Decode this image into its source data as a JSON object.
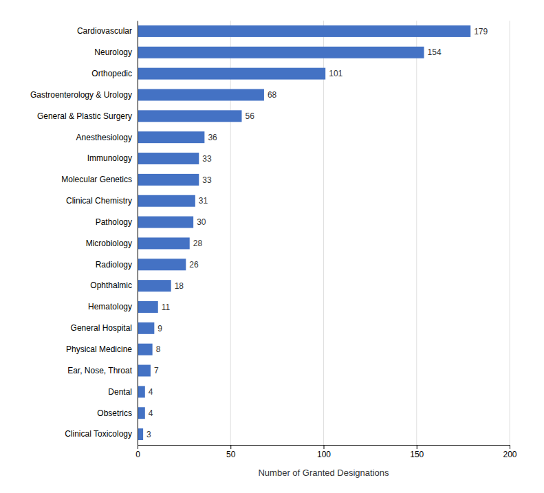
{
  "chart_data": {
    "type": "bar",
    "orientation": "horizontal",
    "x_label": "Number of Granted Designations",
    "categories": [
      "Clinical Toxicology",
      "Obsetrics",
      "Dental",
      "Ear, Nose, Throat",
      "Physical Medicine",
      "General Hospital",
      "Hematology",
      "Ophthalmic",
      "Radiology",
      "Microbiology",
      "Pathology",
      "Clinical Chemistry",
      "Molecular Genetics",
      "Immunology",
      "Anesthesiology",
      "General & Plastic Surgery",
      "Gastroenterology & Urology",
      "Orthopedic",
      "Neurology",
      "Cardiovascular"
    ],
    "values": [
      3,
      4,
      4,
      7,
      8,
      9,
      11,
      18,
      26,
      28,
      30,
      31,
      33,
      33,
      36,
      56,
      68,
      101,
      154,
      179
    ],
    "color": "#4472C4",
    "xlim": [
      0,
      200
    ],
    "xticks": [
      0,
      50,
      100,
      150,
      200
    ],
    "grid": true,
    "data_labels": true
  }
}
